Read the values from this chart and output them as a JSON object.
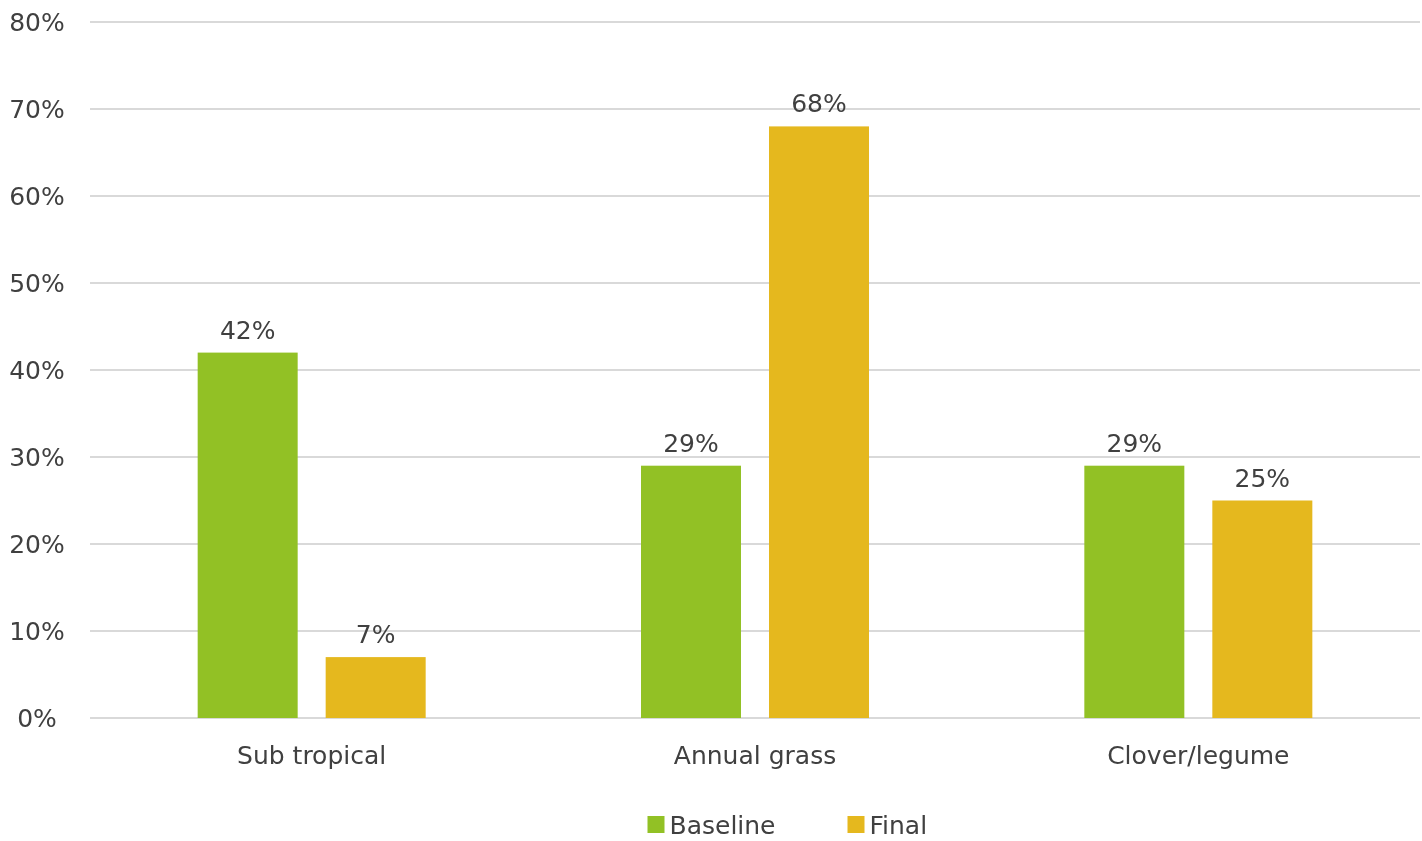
{
  "chart_data": {
    "type": "bar",
    "categories": [
      "Sub tropical",
      "Annual grass",
      "Clover/legume"
    ],
    "series": [
      {
        "name": "Baseline",
        "color": "#92c125",
        "values": [
          42,
          29,
          29
        ],
        "value_labels": [
          "42%",
          "29%",
          "29%"
        ]
      },
      {
        "name": "Final",
        "color": "#e5b81e",
        "values": [
          7,
          68,
          25
        ],
        "value_labels": [
          "7%",
          "68%",
          "25%"
        ]
      }
    ],
    "ylim": [
      0,
      80
    ],
    "yticks": [
      {
        "value": 0,
        "label": "0%"
      },
      {
        "value": 10,
        "label": "10%"
      },
      {
        "value": 20,
        "label": "20%"
      },
      {
        "value": 30,
        "label": "30%"
      },
      {
        "value": 40,
        "label": "40%"
      },
      {
        "value": 50,
        "label": "50%"
      },
      {
        "value": 60,
        "label": "60%"
      },
      {
        "value": 70,
        "label": "70%"
      },
      {
        "value": 80,
        "label": "80%"
      }
    ],
    "grid": "y",
    "legend": "bottom"
  }
}
